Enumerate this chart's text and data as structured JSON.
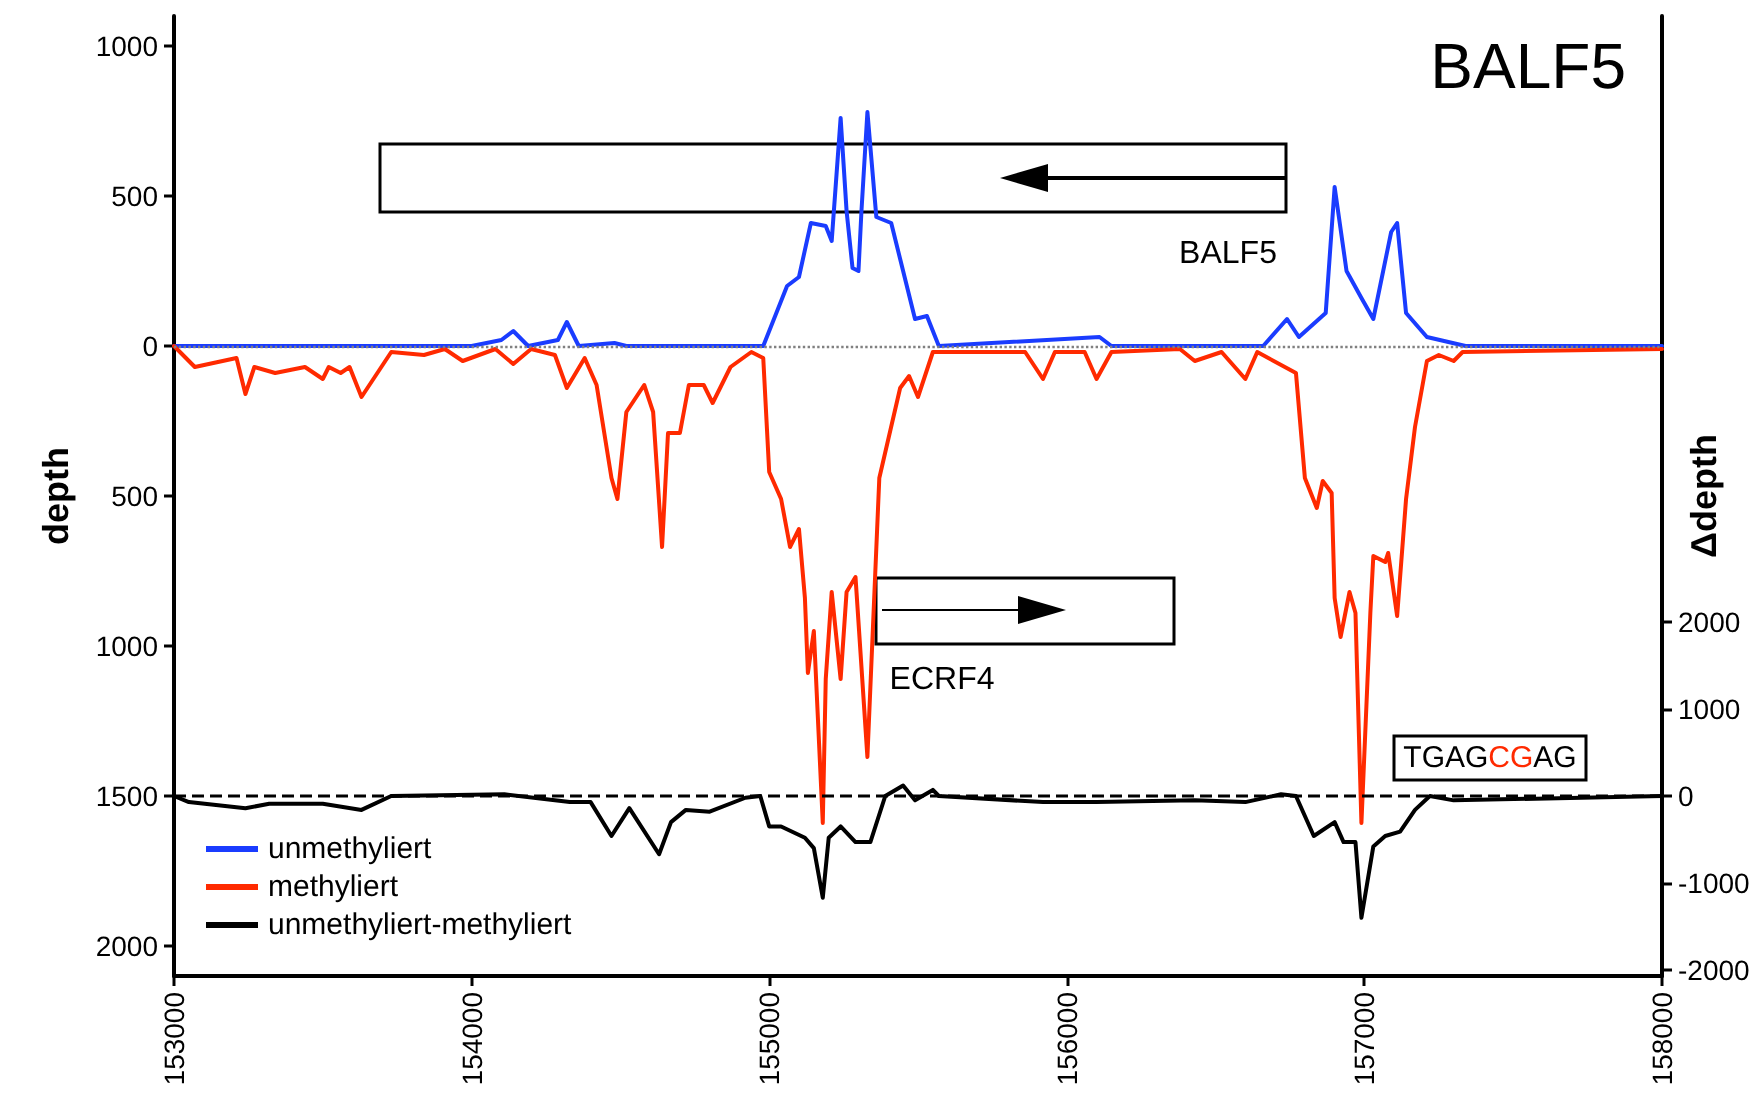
{
  "chart_data": {
    "type": "line",
    "title": "BALF5",
    "ylabel": "depth",
    "y2label": "Δdepth",
    "xlim": [
      153000,
      158000
    ],
    "xticks": [
      153000,
      154000,
      155000,
      156000,
      157000,
      158000
    ],
    "ylim": [
      -2100,
      1100
    ],
    "yticks": [
      1000,
      500,
      0,
      {
        "value": -500,
        "label": "500"
      },
      {
        "value": -1000,
        "label": "1000"
      },
      {
        "value": -1500,
        "label": "1500"
      },
      {
        "value": -2000,
        "label": "2000"
      }
    ],
    "y2lim": [
      -2070,
      8970
    ],
    "y2ticks": [
      2000,
      1000,
      0,
      -1000,
      -2000
    ],
    "grid": false,
    "legend": "bottom left",
    "marker": "none",
    "line_style": "solid",
    "series": [
      {
        "name": "unmethyliert",
        "color": "#1a3cff",
        "x": [
          153000,
          153500,
          154000,
          154100,
          154140,
          154190,
          154290,
          154320,
          154360,
          154480,
          154520,
          154980,
          155060,
          155100,
          155140,
          155190,
          155210,
          155240,
          155260,
          155280,
          155300,
          155310,
          155330,
          155360,
          155410,
          155440,
          155490,
          155530,
          155570,
          156110,
          156150,
          156660,
          156740,
          156780,
          156870,
          156900,
          156940,
          156990,
          157030,
          157090,
          157110,
          157140,
          157210,
          157340,
          158000
        ],
        "values": [
          0,
          0,
          0,
          20,
          50,
          0,
          20,
          80,
          0,
          10,
          0,
          0,
          200,
          230,
          410,
          400,
          350,
          760,
          450,
          260,
          250,
          450,
          780,
          430,
          410,
          290,
          90,
          100,
          0,
          30,
          0,
          0,
          90,
          30,
          110,
          530,
          250,
          160,
          90,
          380,
          410,
          110,
          30,
          0,
          0
        ]
      },
      {
        "name": "methyliert",
        "color": "#ff2a00",
        "x": [
          153000,
          153070,
          153210,
          153240,
          153270,
          153340,
          153440,
          153500,
          153520,
          153560,
          153590,
          153630,
          153730,
          153840,
          153910,
          153970,
          154080,
          154140,
          154200,
          154280,
          154320,
          154380,
          154420,
          154470,
          154490,
          154520,
          154580,
          154610,
          154640,
          154660,
          154700,
          154730,
          154780,
          154810,
          154870,
          154940,
          154980,
          155000,
          155040,
          155070,
          155100,
          155120,
          155130,
          155150,
          155180,
          155190,
          155210,
          155240,
          155260,
          155290,
          155330,
          155370,
          155440,
          155470,
          155500,
          155550,
          155860,
          155920,
          155960,
          156060,
          156100,
          156150,
          156380,
          156430,
          156520,
          156600,
          156640,
          156770,
          156800,
          156840,
          156860,
          156890,
          156900,
          156920,
          156950,
          156970,
          156990,
          157020,
          157030,
          157070,
          157080,
          157110,
          157140,
          157170,
          157210,
          157250,
          157300,
          157330,
          158000
        ],
        "values": [
          0,
          -70,
          -40,
          -160,
          -70,
          -90,
          -70,
          -110,
          -70,
          -90,
          -70,
          -170,
          -20,
          -30,
          -10,
          -50,
          -10,
          -60,
          -10,
          -30,
          -140,
          -40,
          -130,
          -440,
          -510,
          -220,
          -130,
          -220,
          -670,
          -290,
          -290,
          -130,
          -130,
          -190,
          -70,
          -20,
          -40,
          -420,
          -510,
          -670,
          -610,
          -840,
          -1090,
          -950,
          -1590,
          -1110,
          -820,
          -1110,
          -820,
          -770,
          -1370,
          -440,
          -140,
          -100,
          -170,
          -20,
          -20,
          -110,
          -20,
          -20,
          -110,
          -20,
          -10,
          -50,
          -20,
          -110,
          -20,
          -90,
          -440,
          -540,
          -450,
          -490,
          -840,
          -970,
          -820,
          -890,
          -1590,
          -890,
          -700,
          -720,
          -690,
          -900,
          -510,
          -270,
          -50,
          -30,
          -50,
          -20,
          -10
        ]
      },
      {
        "name": "unmethyliert-methyliert",
        "color": "#000000",
        "axis": "y2",
        "x": [
          153000,
          153050,
          153240,
          153320,
          153500,
          153630,
          153730,
          154110,
          154330,
          154400,
          154470,
          154530,
          154630,
          154670,
          154720,
          154800,
          154920,
          154970,
          155000,
          155040,
          155120,
          155150,
          155180,
          155200,
          155240,
          155290,
          155340,
          155390,
          155450,
          155490,
          155550,
          155570,
          155920,
          156100,
          156430,
          156600,
          156720,
          156770,
          156830,
          156900,
          156930,
          156970,
          156990,
          157030,
          157070,
          157120,
          157170,
          157220,
          157300,
          158000
        ],
        "values": [
          0,
          -70,
          -140,
          -90,
          -90,
          -160,
          0,
          20,
          -70,
          -70,
          -460,
          -140,
          -670,
          -300,
          -160,
          -180,
          -20,
          0,
          -350,
          -350,
          -480,
          -600,
          -1170,
          -480,
          -350,
          -530,
          -530,
          0,
          120,
          -50,
          70,
          0,
          -70,
          -70,
          -50,
          -70,
          20,
          0,
          -460,
          -300,
          -530,
          -530,
          -1400,
          -580,
          -460,
          -410,
          -160,
          0,
          -50,
          0
        ]
      }
    ],
    "ref_lines": [
      {
        "axis": "y",
        "value": 0,
        "color": "#808080",
        "line_style": "dotted"
      },
      {
        "axis": "y2",
        "value": 0,
        "color": "#000000",
        "line_style": "dashed"
      }
    ],
    "annotations": [
      "BALF5",
      "ECRF4",
      "TGAGCGAG"
    ]
  }
}
